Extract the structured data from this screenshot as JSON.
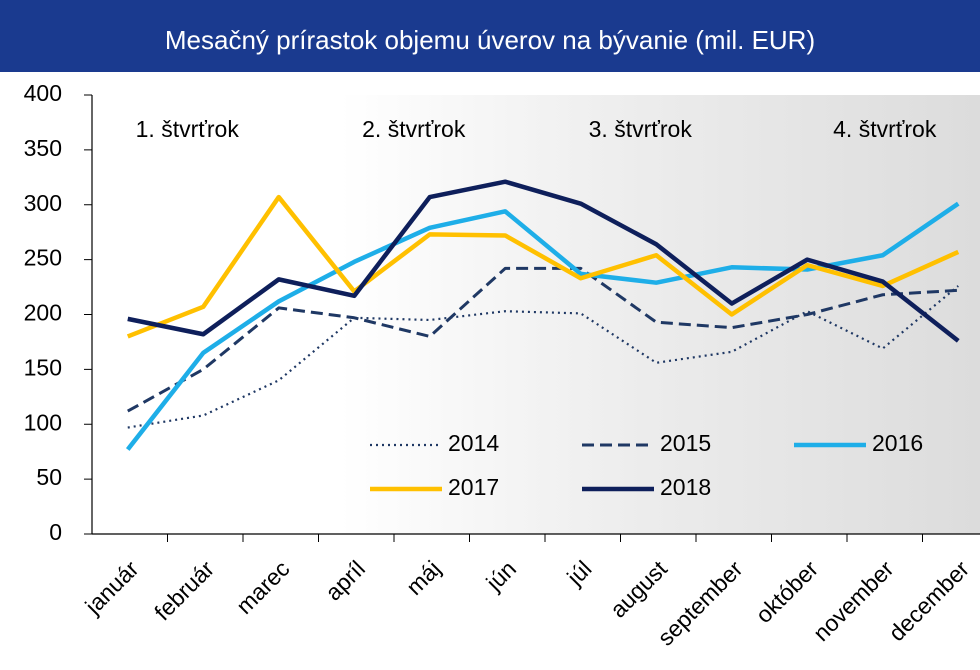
{
  "chart_data": {
    "type": "line",
    "title": "Mesačný prírastok objemu úverov na bývanie (mil. EUR)",
    "categories": [
      "január",
      "február",
      "marec",
      "apríl",
      "máj",
      "jún",
      "júl",
      "august",
      "september",
      "október",
      "november",
      "december"
    ],
    "series": [
      {
        "name": "2014",
        "color": "#1f3864",
        "dash": "dotted",
        "values": [
          97,
          108,
          140,
          197,
          195,
          203,
          201,
          156,
          166,
          203,
          169,
          226
        ]
      },
      {
        "name": "2015",
        "color": "#1f3864",
        "dash": "dashed",
        "values": [
          112,
          150,
          206,
          197,
          180,
          242,
          242,
          193,
          188,
          200,
          218,
          222
        ]
      },
      {
        "name": "2016",
        "color": "#1eaee8",
        "dash": "solid",
        "values": [
          77,
          165,
          212,
          248,
          279,
          294,
          237,
          229,
          243,
          241,
          254,
          301
        ]
      },
      {
        "name": "2017",
        "color": "#ffc000",
        "dash": "solid",
        "values": [
          180,
          207,
          307,
          221,
          273,
          272,
          233,
          254,
          200,
          245,
          226,
          257
        ]
      },
      {
        "name": "2018",
        "color": "#0e1f5b",
        "dash": "solid",
        "values": [
          196,
          182,
          232,
          217,
          307,
          321,
          301,
          264,
          210,
          250,
          230,
          176
        ]
      }
    ],
    "annotations": [
      "1. štvrťrok",
      "2. štvrťrok",
      "3. štvrťrok",
      "4. štvrťrok"
    ],
    "ylim": [
      0,
      400
    ],
    "yticks": [
      0,
      50,
      100,
      150,
      200,
      250,
      300,
      350,
      400
    ],
    "legend": "bottom-right",
    "title_bar_color": "#1a3a8f"
  }
}
